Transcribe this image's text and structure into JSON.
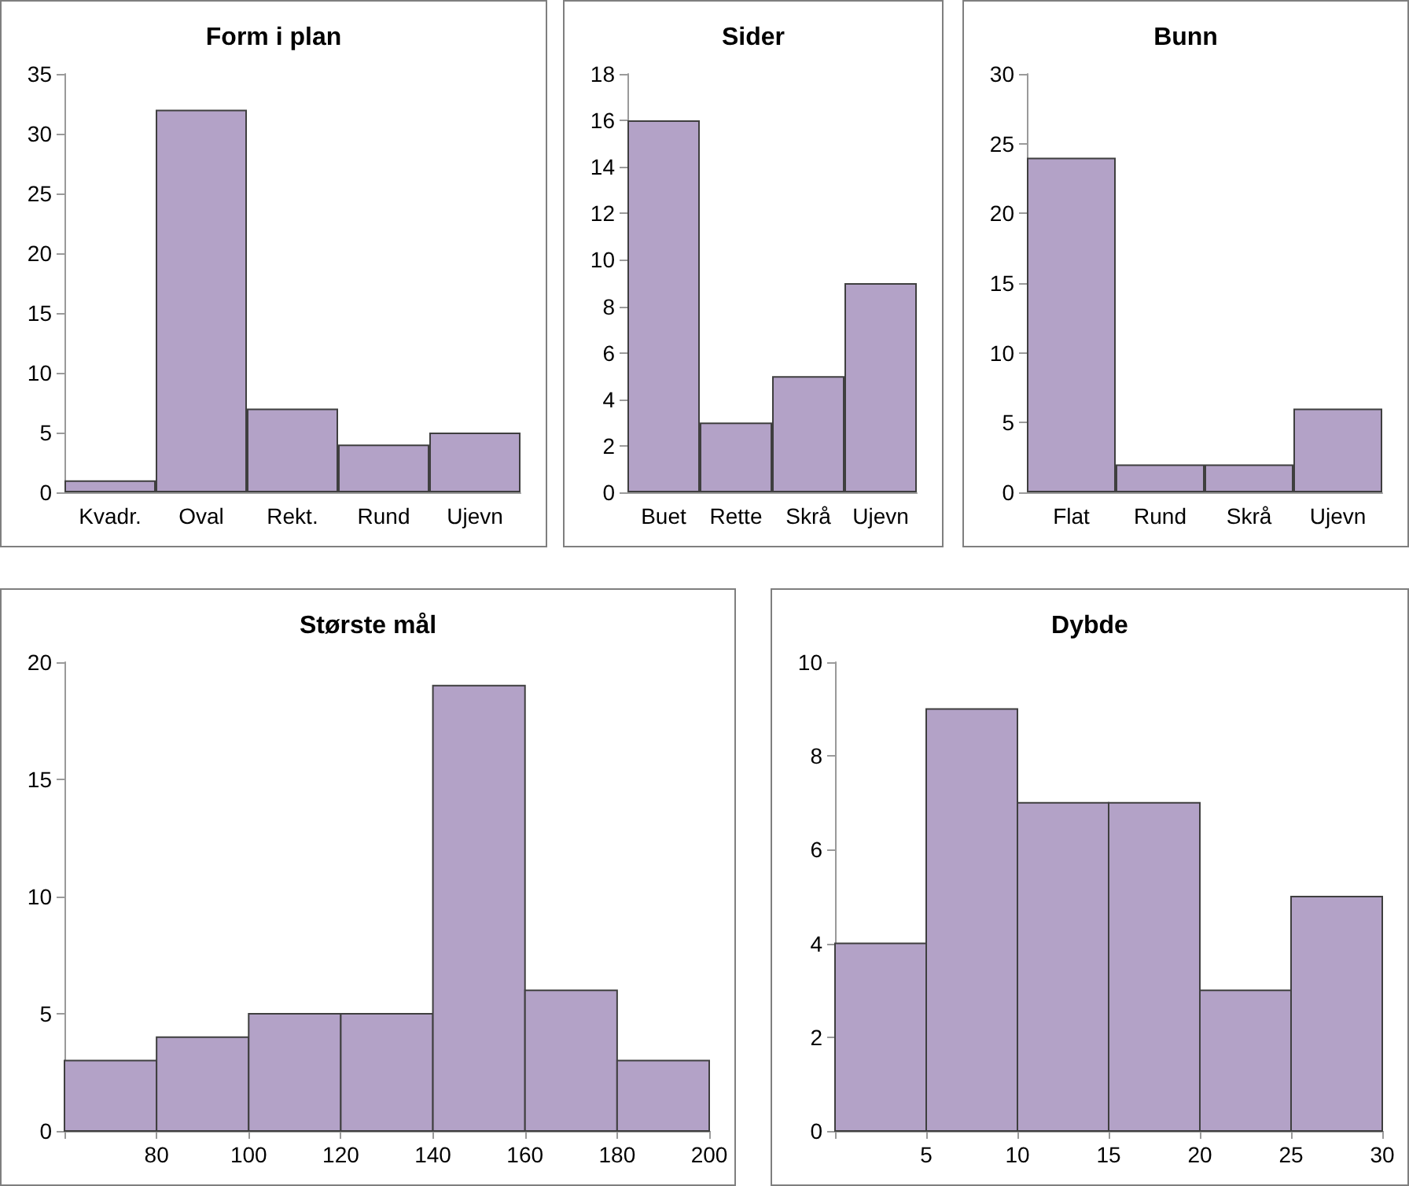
{
  "chart_data": [
    {
      "type": "bar",
      "title": "Form i plan",
      "categories": [
        "Kvadr.",
        "Oval",
        "Rekt.",
        "Rund",
        "Ujevn"
      ],
      "values": [
        1,
        32,
        7,
        4,
        5
      ],
      "color": "#b3a2c7",
      "ylim": [
        0,
        35
      ],
      "yticks": [
        0,
        5,
        10,
        15,
        20,
        25,
        30,
        35
      ],
      "grid": false
    },
    {
      "type": "bar",
      "title": "Sider",
      "categories": [
        "Buet",
        "Rette",
        "Skrå",
        "Ujevn"
      ],
      "values": [
        16,
        3,
        5,
        9
      ],
      "color": "#b3a2c7",
      "ylim": [
        0,
        18
      ],
      "yticks": [
        0,
        2,
        4,
        6,
        8,
        10,
        12,
        14,
        16,
        18
      ],
      "grid": false
    },
    {
      "type": "bar",
      "title": "Bunn",
      "categories": [
        "Flat",
        "Rund",
        "Skrå",
        "Ujevn"
      ],
      "values": [
        24,
        2,
        2,
        6
      ],
      "color": "#b3a2c7",
      "ylim": [
        0,
        30
      ],
      "yticks": [
        0,
        5,
        10,
        15,
        20,
        25,
        30
      ],
      "grid": false
    },
    {
      "type": "histogram",
      "title": "Største mål",
      "bins": [
        60,
        80,
        100,
        120,
        140,
        160,
        180,
        200
      ],
      "values": [
        3,
        4,
        5,
        5,
        19,
        6,
        3
      ],
      "color": "#b3a2c7",
      "xlim": [
        60,
        200
      ],
      "xticks": [
        {
          "value": 60,
          "label": null
        },
        80,
        100,
        120,
        140,
        160,
        180,
        200
      ],
      "ylim": [
        0,
        20
      ],
      "yticks": [
        0,
        5,
        10,
        15,
        20
      ],
      "grid": false
    },
    {
      "type": "histogram",
      "title": "Dybde",
      "bins": [
        0,
        5,
        10,
        15,
        20,
        25,
        30
      ],
      "values": [
        4,
        9,
        7,
        7,
        3,
        5
      ],
      "color": "#b3a2c7",
      "xlim": [
        0,
        30
      ],
      "xticks": [
        {
          "value": 0,
          "label": null
        },
        5,
        10,
        15,
        20,
        25,
        30
      ],
      "ylim": [
        0,
        10
      ],
      "yticks": [
        0,
        2,
        4,
        6,
        8,
        10
      ],
      "grid": false
    }
  ]
}
